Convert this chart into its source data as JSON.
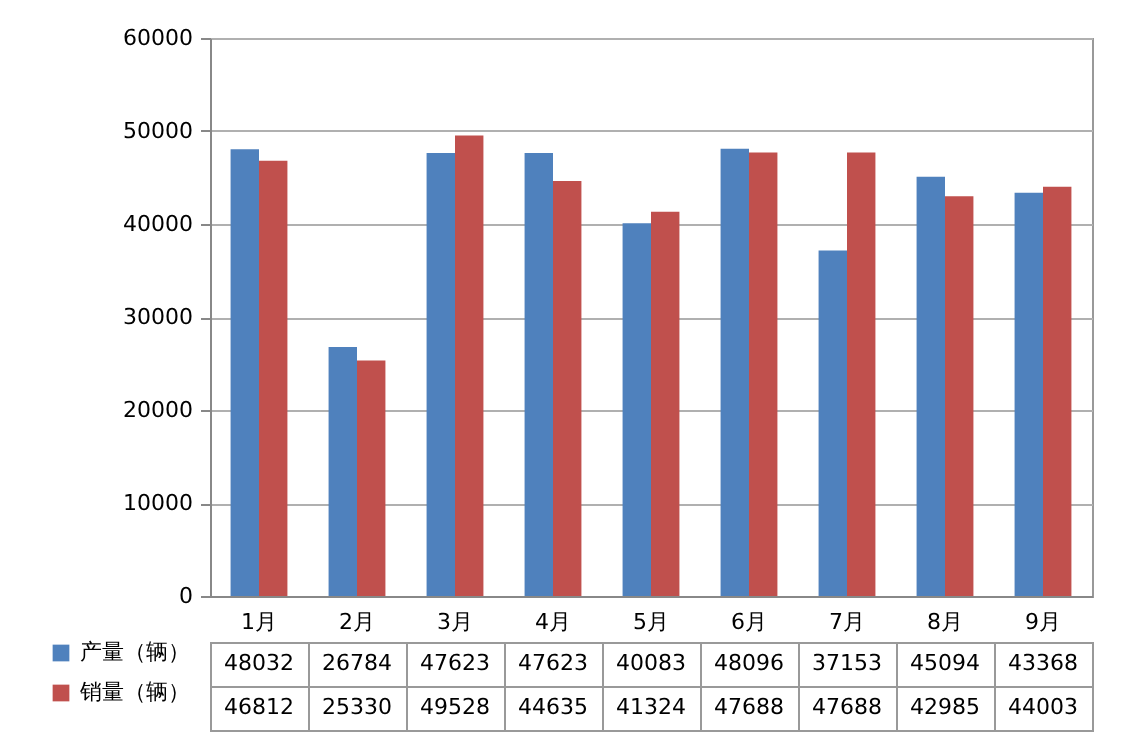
{
  "chart_data": {
    "type": "bar",
    "categories": [
      "1月",
      "2月",
      "3月",
      "4月",
      "5月",
      "6月",
      "7月",
      "8月",
      "9月"
    ],
    "series": [
      {
        "name": "产量（辆）",
        "color": "#4f81bd",
        "values": [
          48032,
          26784,
          47623,
          47623,
          40083,
          48096,
          37153,
          45094,
          43368
        ]
      },
      {
        "name": "销量（辆）",
        "color": "#c0504d",
        "values": [
          46812,
          25330,
          49528,
          44635,
          41324,
          47688,
          47688,
          42985,
          44003
        ]
      }
    ],
    "ylim": [
      0,
      60000
    ],
    "yticks": [
      0,
      10000,
      20000,
      30000,
      40000,
      50000,
      60000
    ],
    "grid": "y",
    "legend": "bottom left",
    "data_labels": true
  }
}
